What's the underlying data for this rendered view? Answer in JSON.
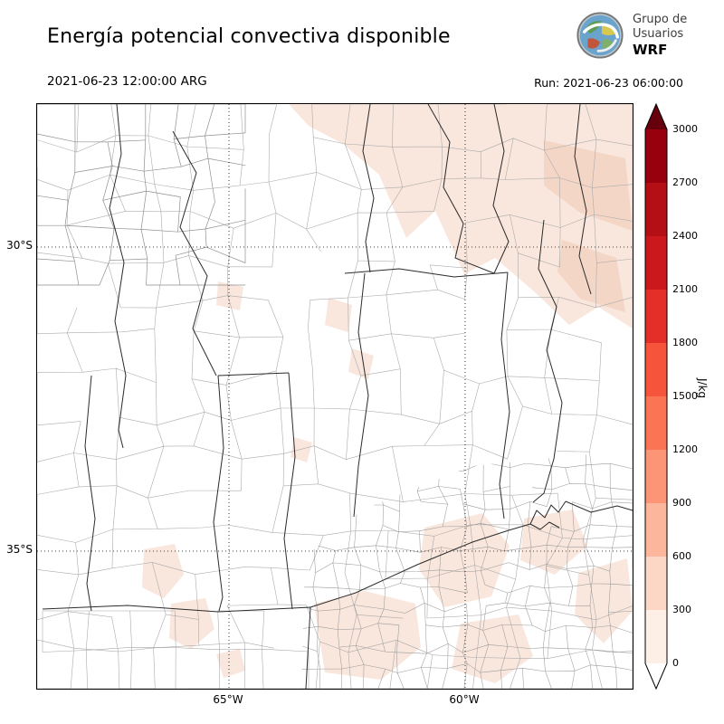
{
  "header": {
    "title": "Energía potencial convectiva disponible",
    "logo": {
      "line1": "Grupo de",
      "line2": "Usuarios",
      "line3": "WRF",
      "icon": "globe-with-cyclone-icon"
    }
  },
  "subheader": {
    "valid_time": "2021-06-23 12:00:00 ARG",
    "run_label": "Run: 2021-06-23 06:00:00"
  },
  "map": {
    "y_ticks": [
      {
        "label": "30°S"
      },
      {
        "label": "35°S"
      }
    ],
    "x_ticks": [
      {
        "label": "65°W"
      },
      {
        "label": "60°W"
      }
    ],
    "fill_light": "#f9e6dc",
    "fill_medium": "#f4d6c6"
  },
  "colorbar": {
    "unit": "J/kg",
    "ticks": [
      "3000",
      "2700",
      "2400",
      "2100",
      "1800",
      "1500",
      "1200",
      "900",
      "600",
      "300",
      "0"
    ],
    "levels": [
      0,
      300,
      600,
      900,
      1200,
      1500,
      1800,
      2100,
      2400,
      2700,
      3000
    ],
    "segment_colors_top_to_bottom": [
      "#99000d",
      "#b30f15",
      "#cb181d",
      "#e32f27",
      "#f6553c",
      "#fb7555",
      "#fc9576",
      "#fcb69c",
      "#fdd7c6",
      "#fdeee6"
    ],
    "over_color": "#67000d",
    "under_color": "#ffffff"
  }
}
